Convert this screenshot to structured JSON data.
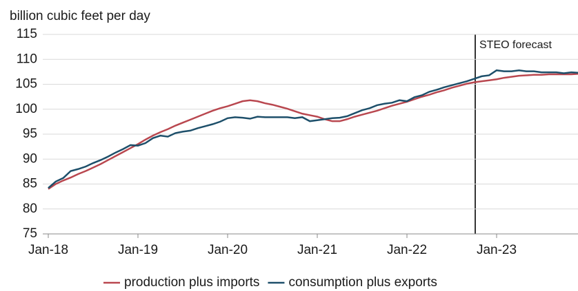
{
  "chart_data": {
    "type": "line",
    "y_axis_label": "billion cubic feet per day",
    "annotation": "STEO forecast",
    "categories": [
      "Jan-18",
      null,
      null,
      null,
      null,
      null,
      null,
      null,
      null,
      null,
      null,
      null,
      "Jan-19",
      null,
      null,
      null,
      null,
      null,
      null,
      null,
      null,
      null,
      null,
      null,
      "Jan-20",
      null,
      null,
      null,
      null,
      null,
      null,
      null,
      null,
      null,
      null,
      null,
      "Jan-21",
      null,
      null,
      null,
      null,
      null,
      null,
      null,
      null,
      null,
      null,
      null,
      "Jan-22",
      null,
      null,
      null,
      null,
      null,
      null,
      null,
      null,
      null,
      null,
      null,
      "Jan-23",
      null,
      null,
      null,
      null,
      null,
      null,
      null,
      null,
      null,
      null,
      null
    ],
    "series": [
      {
        "name": "production plus imports",
        "color": "#b9474f",
        "values": [
          84.0,
          85.0,
          85.7,
          86.3,
          87.0,
          87.6,
          88.3,
          89.0,
          89.8,
          90.6,
          91.4,
          92.2,
          93.0,
          93.9,
          94.7,
          95.4,
          96.0,
          96.7,
          97.3,
          97.9,
          98.5,
          99.1,
          99.7,
          100.2,
          100.6,
          101.1,
          101.6,
          101.8,
          101.6,
          101.2,
          100.9,
          100.5,
          100.1,
          99.6,
          99.1,
          98.8,
          98.5,
          98.0,
          97.6,
          97.6,
          98.0,
          98.5,
          98.9,
          99.3,
          99.7,
          100.2,
          100.7,
          101.1,
          101.5,
          102.0,
          102.5,
          102.9,
          103.4,
          103.8,
          104.3,
          104.7,
          105.1,
          105.4,
          105.6,
          105.8,
          106.0,
          106.3,
          106.5,
          106.7,
          106.8,
          106.9,
          106.9,
          107.0,
          107.0,
          107.0,
          107.0,
          107.1
        ]
      },
      {
        "name": "consumption plus exports",
        "color": "#1d4f6a",
        "values": [
          84.2,
          85.5,
          86.2,
          87.6,
          88.0,
          88.5,
          89.2,
          89.8,
          90.5,
          91.3,
          92.0,
          92.8,
          92.7,
          93.2,
          94.2,
          94.7,
          94.5,
          95.2,
          95.5,
          95.7,
          96.2,
          96.6,
          97.0,
          97.5,
          98.2,
          98.4,
          98.3,
          98.1,
          98.5,
          98.4,
          98.4,
          98.4,
          98.4,
          98.2,
          98.4,
          97.6,
          97.8,
          98.0,
          98.2,
          98.3,
          98.6,
          99.2,
          99.8,
          100.2,
          100.8,
          101.1,
          101.3,
          101.8,
          101.6,
          102.4,
          102.8,
          103.5,
          103.9,
          104.4,
          104.8,
          105.2,
          105.6,
          106.1,
          106.6,
          106.8,
          107.8,
          107.6,
          107.6,
          107.8,
          107.6,
          107.6,
          107.4,
          107.4,
          107.4,
          107.2,
          107.4,
          107.3
        ]
      }
    ],
    "ylim": [
      75,
      115
    ],
    "yticks": [
      75,
      80,
      85,
      90,
      95,
      100,
      105,
      110,
      115
    ],
    "grid": true,
    "legend": "bottom"
  }
}
